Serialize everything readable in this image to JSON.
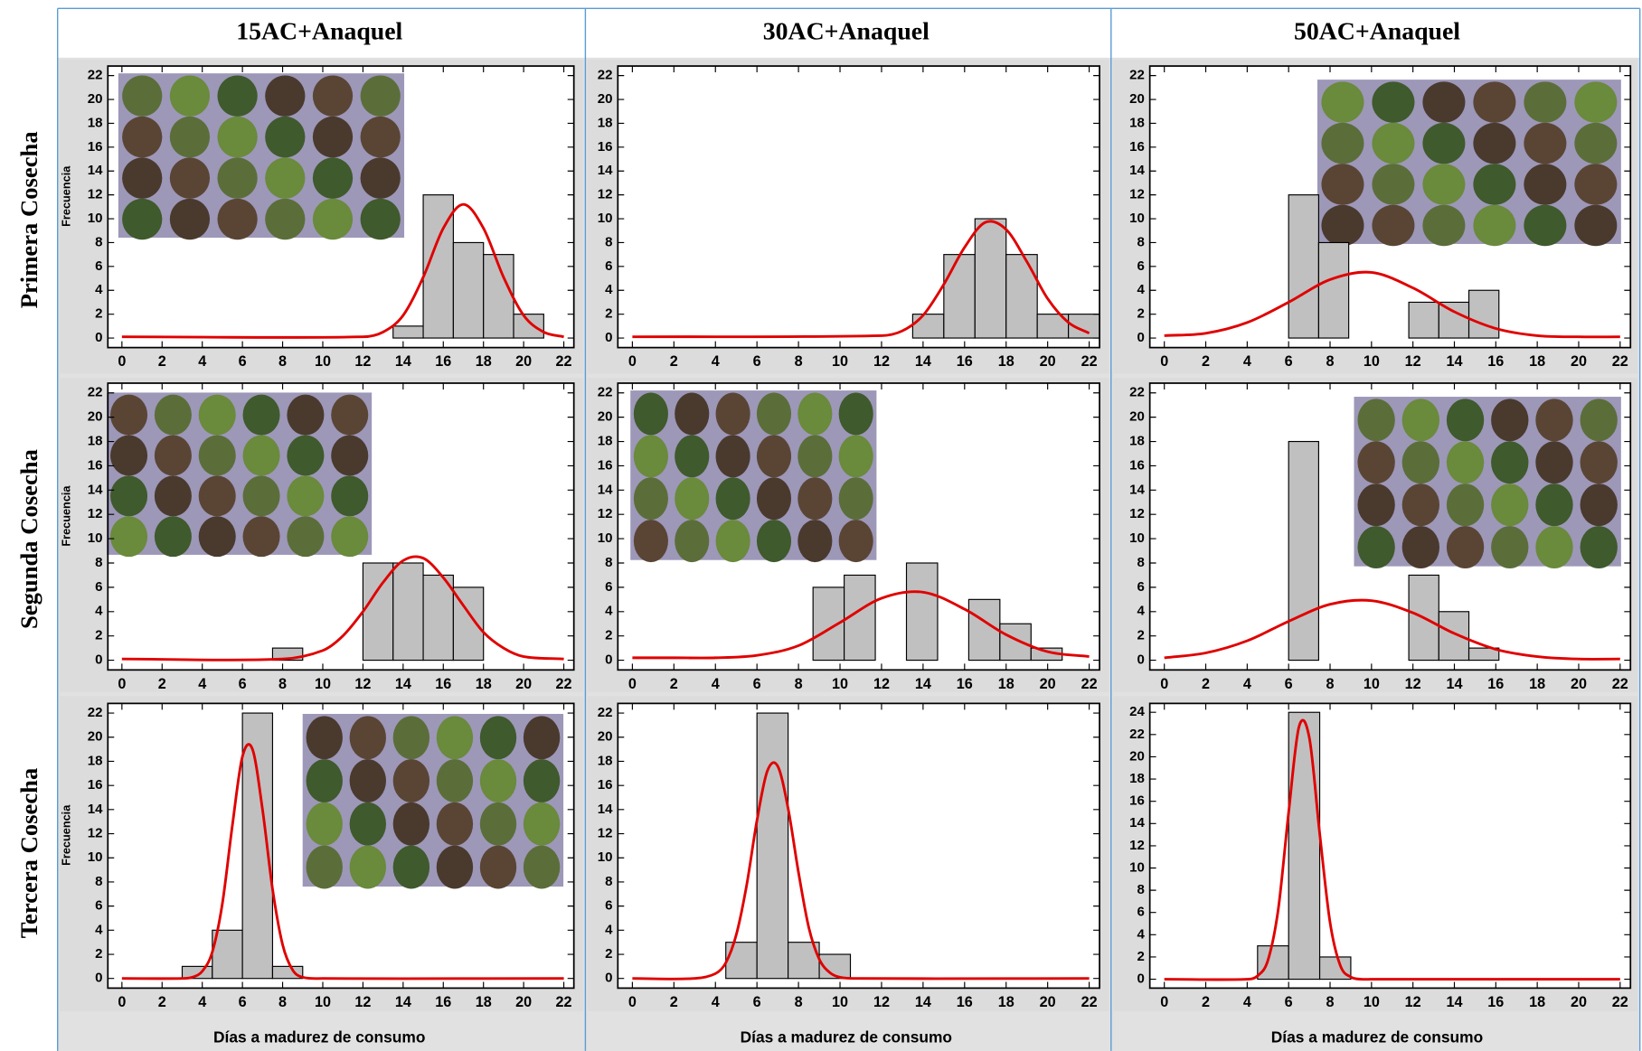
{
  "row_labels": [
    "Primera Cosecha",
    "Segunda Cosecha",
    "Tercera Cosecha"
  ],
  "chart_data": [
    {
      "type": "histogram",
      "title": "15AC+Anaquel",
      "ylabel": "Frecuencia",
      "color": "#c0c0c0",
      "bins": [
        13.5,
        15,
        16.5,
        18,
        19.5,
        21
      ],
      "counts": [
        1,
        12,
        8,
        7,
        2
      ],
      "curve": {
        "color": "#e00000",
        "x": [
          0,
          12,
          13,
          14,
          15,
          16,
          17,
          18,
          19,
          20,
          21,
          22
        ],
        "values": [
          0.1,
          0.1,
          0.5,
          1.9,
          5.1,
          9.2,
          11.2,
          9.2,
          5.1,
          1.9,
          0.5,
          0.1
        ]
      },
      "xlim": [
        -0.7,
        22.5
      ],
      "ylim": [
        -0.8,
        22.8
      ],
      "xticks": [
        0,
        2,
        4,
        6,
        8,
        10,
        12,
        14,
        16,
        18,
        20,
        22
      ],
      "yticks": [
        0,
        2,
        4,
        6,
        8,
        10,
        12,
        14,
        16,
        18,
        20,
        22
      ]
    },
    {
      "type": "histogram",
      "title": "30AC+Anaquel",
      "color": "#c0c0c0",
      "bins": [
        13.5,
        15,
        16.5,
        18,
        19.5,
        21,
        22.5
      ],
      "counts": [
        2,
        7,
        10,
        7,
        2,
        2
      ],
      "curve": {
        "color": "#e00000",
        "x": [
          0,
          12,
          13,
          14,
          15,
          16,
          17,
          18,
          19,
          20,
          21,
          22
        ],
        "values": [
          0.1,
          0.2,
          0.6,
          1.9,
          4.5,
          7.6,
          9.7,
          9.1,
          6.4,
          3.3,
          1.3,
          0.4
        ]
      },
      "xlim": [
        -0.7,
        22.5
      ],
      "ylim": [
        -0.8,
        22.8
      ],
      "xticks": [
        0,
        2,
        4,
        6,
        8,
        10,
        12,
        14,
        16,
        18,
        20,
        22
      ],
      "yticks": [
        0,
        2,
        4,
        6,
        8,
        10,
        12,
        14,
        16,
        18,
        20,
        22
      ]
    },
    {
      "type": "histogram",
      "title": "50AC+Anaquel",
      "color": "#c0c0c0",
      "bins": [
        6,
        7.45,
        8.9,
        10.35,
        11.8,
        13.25,
        14.7,
        16.15
      ],
      "counts": [
        12,
        8,
        0,
        0,
        3,
        3,
        4
      ],
      "curve": {
        "color": "#e00000",
        "x": [
          0,
          2,
          4,
          6,
          8,
          10,
          12,
          14,
          16,
          18,
          20,
          22
        ],
        "values": [
          0.2,
          0.4,
          1.3,
          3,
          4.9,
          5.5,
          4.2,
          2.2,
          0.8,
          0.2,
          0.1,
          0.1
        ]
      },
      "xlim": [
        -0.7,
        22.5
      ],
      "ylim": [
        -0.8,
        22.8
      ],
      "xticks": [
        0,
        2,
        4,
        6,
        8,
        10,
        12,
        14,
        16,
        18,
        20,
        22
      ],
      "yticks": [
        0,
        2,
        4,
        6,
        8,
        10,
        12,
        14,
        16,
        18,
        20,
        22
      ]
    },
    {
      "type": "histogram",
      "ylabel": "Frecuencia",
      "color": "#c0c0c0",
      "bins": [
        7.5,
        9,
        10.5,
        12,
        13.5,
        15,
        16.5,
        18
      ],
      "counts": [
        1,
        0,
        0,
        8,
        8,
        7,
        6
      ],
      "curve": {
        "color": "#e00000",
        "x": [
          0,
          8,
          10,
          11,
          12,
          13,
          14,
          15,
          16,
          17,
          18,
          19,
          20,
          22
        ],
        "values": [
          0.1,
          0.1,
          0.8,
          2,
          4,
          6.4,
          8.2,
          8.4,
          6.8,
          4.5,
          2.3,
          1,
          0.3,
          0.1
        ]
      },
      "xlim": [
        -0.7,
        22.5
      ],
      "ylim": [
        -0.8,
        22.8
      ],
      "xticks": [
        0,
        2,
        4,
        6,
        8,
        10,
        12,
        14,
        16,
        18,
        20,
        22
      ],
      "yticks": [
        0,
        2,
        4,
        6,
        8,
        10,
        12,
        14,
        16,
        18,
        20,
        22
      ]
    },
    {
      "type": "histogram",
      "color": "#c0c0c0",
      "bins": [
        8.7,
        10.2,
        11.7,
        13.2,
        14.7,
        16.2,
        17.7,
        19.2,
        20.7
      ],
      "counts": [
        6,
        7,
        0,
        8,
        0,
        5,
        3,
        1
      ],
      "curve": {
        "color": "#e00000",
        "x": [
          0,
          2,
          4,
          6,
          8,
          10,
          12,
          14,
          16,
          18,
          20,
          22
        ],
        "values": [
          0.2,
          0.2,
          0.2,
          0.4,
          1.2,
          3.1,
          5.1,
          5.6,
          4.2,
          2.1,
          0.7,
          0.3
        ]
      },
      "xlim": [
        -0.7,
        22.5
      ],
      "ylim": [
        -0.8,
        22.8
      ],
      "xticks": [
        0,
        2,
        4,
        6,
        8,
        10,
        12,
        14,
        16,
        18,
        20,
        22
      ],
      "yticks": [
        0,
        2,
        4,
        6,
        8,
        10,
        12,
        14,
        16,
        18,
        20,
        22
      ]
    },
    {
      "type": "histogram",
      "color": "#c0c0c0",
      "bins": [
        6,
        7.45,
        8.9,
        10.35,
        11.8,
        13.25,
        14.7,
        16.15
      ],
      "counts": [
        18,
        0,
        0,
        0,
        7,
        4,
        1
      ],
      "curve": {
        "color": "#e00000",
        "x": [
          0,
          2,
          4,
          6,
          8,
          10,
          12,
          14,
          16,
          18,
          20,
          22
        ],
        "values": [
          0.2,
          0.6,
          1.6,
          3.2,
          4.6,
          4.9,
          3.9,
          2.2,
          0.9,
          0.3,
          0.1,
          0.1
        ]
      },
      "xlim": [
        -0.7,
        22.5
      ],
      "ylim": [
        -0.8,
        22.8
      ],
      "xticks": [
        0,
        2,
        4,
        6,
        8,
        10,
        12,
        14,
        16,
        18,
        20,
        22
      ],
      "yticks": [
        0,
        2,
        4,
        6,
        8,
        10,
        12,
        14,
        16,
        18,
        20,
        22
      ]
    },
    {
      "type": "histogram",
      "ylabel": "Frecuencia",
      "xlabel": "Días a madurez de consumo",
      "color": "#c0c0c0",
      "bins": [
        3,
        4.5,
        6,
        7.5,
        9
      ],
      "counts": [
        1,
        4,
        22,
        1
      ],
      "curve": {
        "color": "#e00000",
        "x": [
          0,
          3,
          3.5,
          4,
          4.5,
          5,
          5.5,
          6,
          6.5,
          7,
          7.5,
          8,
          8.5,
          9,
          10,
          22
        ],
        "values": [
          0,
          0,
          0.1,
          0.6,
          2.2,
          6.2,
          12.7,
          18.4,
          19,
          14,
          7.4,
          2.8,
          0.7,
          0.1,
          0,
          0
        ]
      },
      "xlim": [
        -0.7,
        22.5
      ],
      "ylim": [
        -0.8,
        22.8
      ],
      "xticks": [
        0,
        2,
        4,
        6,
        8,
        10,
        12,
        14,
        16,
        18,
        20,
        22
      ],
      "yticks": [
        0,
        2,
        4,
        6,
        8,
        10,
        12,
        14,
        16,
        18,
        20,
        22
      ]
    },
    {
      "type": "histogram",
      "xlabel": "Días a madurez de consumo",
      "color": "#c0c0c0",
      "bins": [
        4.5,
        6,
        7.5,
        9,
        10.5
      ],
      "counts": [
        3,
        22,
        3,
        2
      ],
      "curve": {
        "color": "#e00000",
        "x": [
          0,
          3,
          4,
          4.5,
          5,
          5.5,
          6,
          6.5,
          7,
          7.5,
          8,
          8.5,
          9,
          9.5,
          10,
          11,
          22
        ],
        "values": [
          0,
          0,
          0.4,
          1.3,
          3.6,
          7.7,
          13.1,
          17.2,
          17.6,
          14.1,
          8.8,
          4.2,
          1.6,
          0.5,
          0.1,
          0,
          0
        ]
      },
      "xlim": [
        -0.7,
        22.5
      ],
      "ylim": [
        -0.8,
        22.8
      ],
      "xticks": [
        0,
        2,
        4,
        6,
        8,
        10,
        12,
        14,
        16,
        18,
        20,
        22
      ],
      "yticks": [
        0,
        2,
        4,
        6,
        8,
        10,
        12,
        14,
        16,
        18,
        20,
        22
      ]
    },
    {
      "type": "histogram",
      "xlabel": "Días a madurez de consumo",
      "color": "#c0c0c0",
      "bins": [
        4.5,
        6,
        7.5,
        9
      ],
      "counts": [
        3,
        24,
        2
      ],
      "curve": {
        "color": "#e00000",
        "x": [
          0,
          4,
          4.5,
          5,
          5.5,
          6,
          6.5,
          7,
          7.5,
          8,
          8.5,
          9,
          9.5,
          10,
          22
        ],
        "values": [
          0,
          0,
          0.3,
          1.7,
          6.3,
          15,
          22.7,
          21.7,
          13.1,
          5.1,
          1.2,
          0.2,
          0,
          0,
          0
        ]
      },
      "xlim": [
        -0.7,
        22.5
      ],
      "ylim": [
        -0.8,
        24.8
      ],
      "xticks": [
        0,
        2,
        4,
        6,
        8,
        10,
        12,
        14,
        16,
        18,
        20,
        22
      ],
      "yticks": [
        0,
        2,
        4,
        6,
        8,
        10,
        12,
        14,
        16,
        18,
        20,
        22,
        24
      ]
    }
  ]
}
